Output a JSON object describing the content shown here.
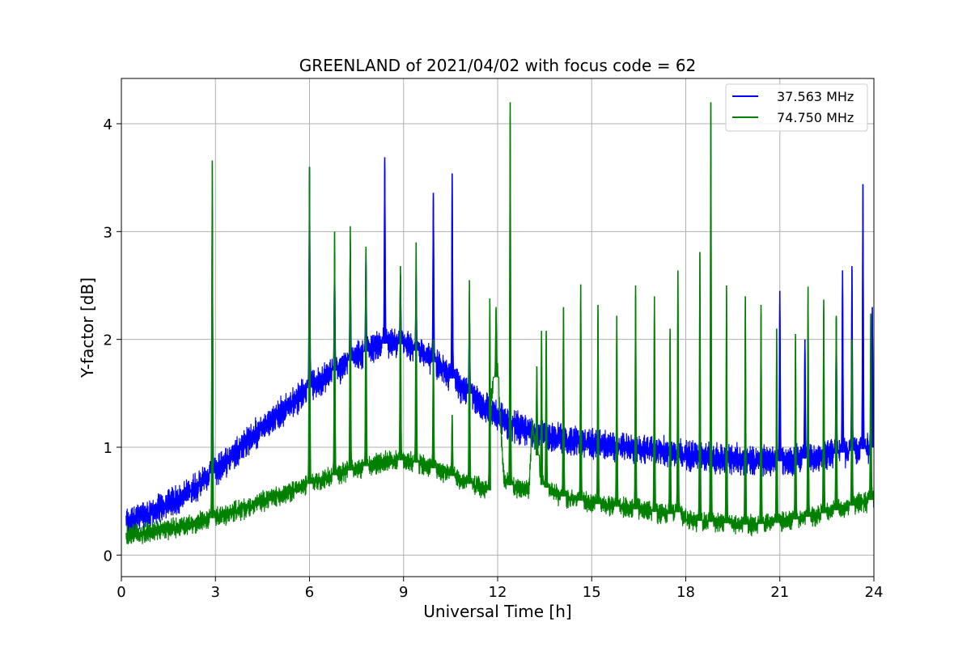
{
  "chart_data": {
    "type": "line",
    "title": "GREENLAND of 2021/04/02 with focus code = 62",
    "xlabel": "Universal Time [h]",
    "ylabel": "Y-factor [dB]",
    "xlim": [
      0,
      24
    ],
    "ylim": [
      -0.2,
      4.42
    ],
    "xticks": [
      0,
      3,
      6,
      9,
      12,
      15,
      18,
      21,
      24
    ],
    "yticks": [
      0,
      1,
      2,
      3,
      4
    ],
    "grid": true,
    "legend_position": "top-right",
    "series": [
      {
        "name": "37.563 MHz",
        "color": "#0000ff",
        "baseline": {
          "x": [
            0.15,
            1,
            2,
            3,
            4,
            5,
            6,
            7,
            8,
            8.5,
            9,
            9.5,
            10,
            10.5,
            11,
            11.5,
            12,
            12.5,
            13,
            14,
            15,
            16,
            17,
            18,
            19,
            20,
            21,
            22,
            23,
            24
          ],
          "y": [
            0.3,
            0.4,
            0.55,
            0.78,
            1.05,
            1.3,
            1.55,
            1.75,
            1.92,
            1.97,
            1.95,
            1.88,
            1.78,
            1.65,
            1.52,
            1.4,
            1.28,
            1.2,
            1.15,
            1.08,
            1.03,
            1.0,
            0.97,
            0.93,
            0.9,
            0.88,
            0.87,
            0.9,
            0.95,
            1.0
          ]
        },
        "spread": 0.22,
        "spikes": [
          {
            "x": 2.9,
            "y": 3.2
          },
          {
            "x": 6.0,
            "y": 3.6
          },
          {
            "x": 6.8,
            "y": 2.8
          },
          {
            "x": 7.3,
            "y": 2.9
          },
          {
            "x": 7.8,
            "y": 2.8
          },
          {
            "x": 8.4,
            "y": 3.69
          },
          {
            "x": 8.9,
            "y": 2.6
          },
          {
            "x": 9.4,
            "y": 2.6
          },
          {
            "x": 9.95,
            "y": 3.36
          },
          {
            "x": 10.55,
            "y": 3.54
          },
          {
            "x": 11.1,
            "y": 2.3
          },
          {
            "x": 21.0,
            "y": 2.45
          },
          {
            "x": 21.8,
            "y": 2.0
          },
          {
            "x": 22.8,
            "y": 2.2
          },
          {
            "x": 23.0,
            "y": 2.64
          },
          {
            "x": 23.3,
            "y": 2.68
          },
          {
            "x": 23.65,
            "y": 3.44
          },
          {
            "x": 23.95,
            "y": 2.3
          }
        ]
      },
      {
        "name": "74.750 MHz",
        "color": "#008000",
        "baseline": {
          "x": [
            0.15,
            1,
            2,
            3,
            4,
            5,
            6,
            7,
            8,
            8.5,
            9,
            9.5,
            10,
            10.5,
            11,
            11.5,
            11.75,
            11.8,
            12,
            12.2,
            12.5,
            13,
            13.1,
            13.4,
            14,
            15,
            16,
            17,
            17.5,
            17.8,
            18,
            19,
            20,
            21,
            22,
            23,
            24
          ],
          "y": [
            0.18,
            0.22,
            0.27,
            0.35,
            0.44,
            0.55,
            0.66,
            0.76,
            0.84,
            0.87,
            0.88,
            0.85,
            0.8,
            0.74,
            0.67,
            0.62,
            0.6,
            1.5,
            1.7,
            0.7,
            0.62,
            0.6,
            1.2,
            0.65,
            0.55,
            0.48,
            0.44,
            0.4,
            0.38,
            0.4,
            0.33,
            0.3,
            0.28,
            0.3,
            0.36,
            0.43,
            0.52
          ]
        },
        "spread": 0.15,
        "spikes": [
          {
            "x": 2.9,
            "y": 3.66
          },
          {
            "x": 6.0,
            "y": 3.6
          },
          {
            "x": 6.8,
            "y": 3.0
          },
          {
            "x": 7.3,
            "y": 3.05
          },
          {
            "x": 7.8,
            "y": 2.86
          },
          {
            "x": 8.9,
            "y": 2.68
          },
          {
            "x": 9.4,
            "y": 2.9
          },
          {
            "x": 9.95,
            "y": 2.0
          },
          {
            "x": 10.55,
            "y": 1.3
          },
          {
            "x": 11.1,
            "y": 2.55
          },
          {
            "x": 11.75,
            "y": 2.38
          },
          {
            "x": 11.95,
            "y": 2.3
          },
          {
            "x": 12.4,
            "y": 4.2
          },
          {
            "x": 13.25,
            "y": 1.75
          },
          {
            "x": 13.4,
            "y": 2.08
          },
          {
            "x": 13.55,
            "y": 2.08
          },
          {
            "x": 14.1,
            "y": 2.3
          },
          {
            "x": 14.65,
            "y": 2.51
          },
          {
            "x": 15.2,
            "y": 2.32
          },
          {
            "x": 15.8,
            "y": 2.22
          },
          {
            "x": 16.4,
            "y": 2.5
          },
          {
            "x": 17.0,
            "y": 2.4
          },
          {
            "x": 17.5,
            "y": 2.1
          },
          {
            "x": 17.75,
            "y": 2.64
          },
          {
            "x": 18.45,
            "y": 2.81
          },
          {
            "x": 18.8,
            "y": 4.2
          },
          {
            "x": 19.3,
            "y": 2.5
          },
          {
            "x": 19.9,
            "y": 2.4
          },
          {
            "x": 20.4,
            "y": 2.32
          },
          {
            "x": 20.9,
            "y": 2.1
          },
          {
            "x": 21.5,
            "y": 2.05
          },
          {
            "x": 21.9,
            "y": 2.49
          },
          {
            "x": 22.4,
            "y": 2.37
          },
          {
            "x": 22.8,
            "y": 2.22
          },
          {
            "x": 23.3,
            "y": 2.0
          },
          {
            "x": 23.9,
            "y": 2.24
          }
        ]
      }
    ]
  }
}
